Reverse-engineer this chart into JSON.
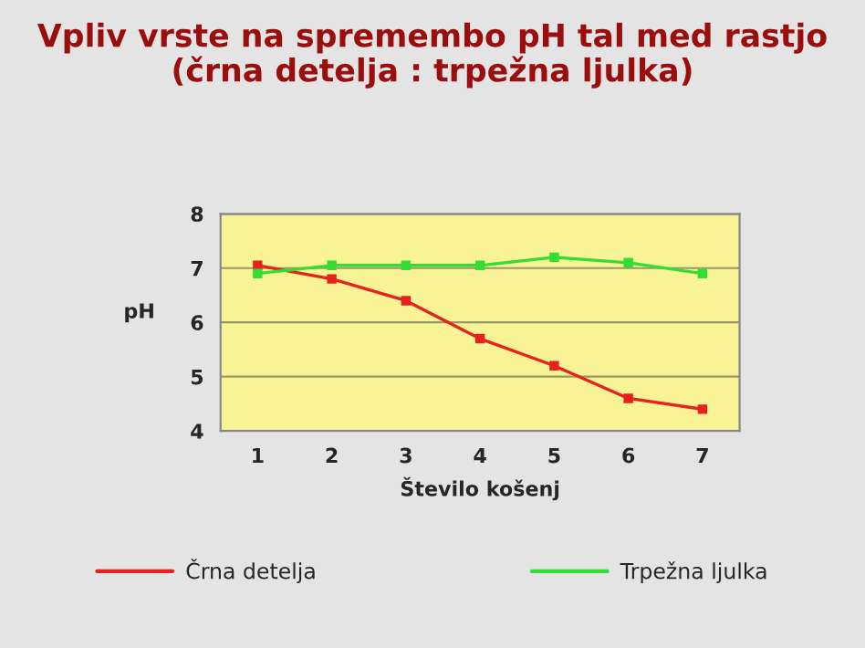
{
  "chart_data": {
    "type": "line",
    "title": "Vpliv vrste na spremembo pH tal med rastjo\n(črna detelja : trpežna ljulka)",
    "xlabel": "Število košenj",
    "ylabel": "pH",
    "categories": [
      "1",
      "2",
      "3",
      "4",
      "5",
      "6",
      "7"
    ],
    "series": [
      {
        "name": "Črna detelja",
        "color": "#e8211e",
        "values": [
          7.05,
          6.8,
          6.4,
          5.7,
          5.2,
          4.6,
          4.4
        ]
      },
      {
        "name": "Trpežna ljulka",
        "color": "#33dd33",
        "values": [
          6.9,
          7.05,
          7.05,
          7.05,
          7.2,
          7.1,
          6.9
        ]
      }
    ],
    "ylim": [
      4,
      8
    ],
    "yticks": [
      4,
      5,
      6,
      7,
      8
    ],
    "grid": "y",
    "legend": "bottom",
    "marker": "square",
    "line_style": "solid"
  }
}
